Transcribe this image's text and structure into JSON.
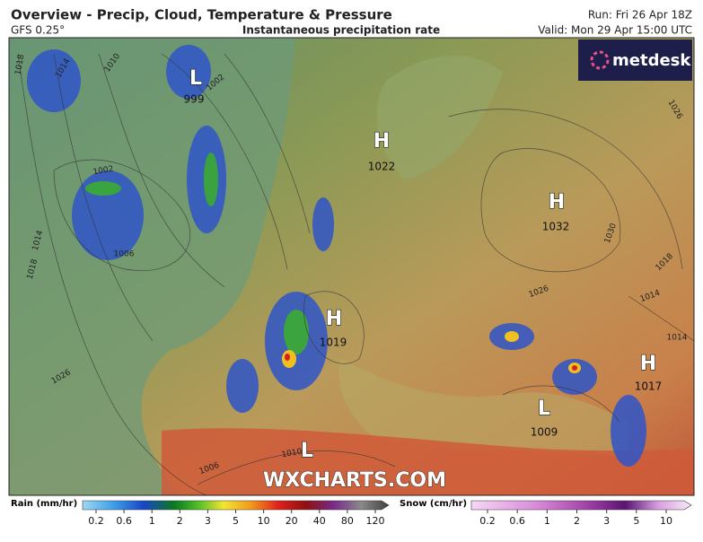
{
  "header": {
    "title": "Overview - Precip, Cloud, Temperature & Pressure",
    "model": "GFS 0.25°",
    "subtitle": "Instantaneous precipitation rate",
    "run": "Run: Fri 26 Apr 18Z",
    "valid": "Valid: Mon 29 Apr 15:00 UTC"
  },
  "logo": "metdesk",
  "watermark": "WXCHARTS.COM",
  "pressure_centers": [
    {
      "type": "L",
      "value": 999
    },
    {
      "type": "H",
      "value": 1022
    },
    {
      "type": "H",
      "value": 1032
    },
    {
      "type": "H",
      "value": 1019
    },
    {
      "type": "H",
      "value": 1017
    },
    {
      "type": "L",
      "value": 1009
    },
    {
      "type": "L"
    }
  ],
  "isobar_labels": [
    1018,
    1014,
    1010,
    1002,
    1002,
    1006,
    1014,
    1018,
    1026,
    1030,
    1026,
    1026,
    1018,
    1014,
    1014,
    1006,
    1010
  ],
  "legend": {
    "rain": {
      "title": "Rain (mm/hr)",
      "ticks": [
        0.2,
        0.6,
        1,
        2,
        3,
        5,
        10,
        20,
        40,
        80,
        120
      ]
    },
    "snow": {
      "title": "Snow (cm/hr)",
      "ticks": [
        0.2,
        0.6,
        1,
        2,
        3,
        5,
        10
      ]
    }
  }
}
